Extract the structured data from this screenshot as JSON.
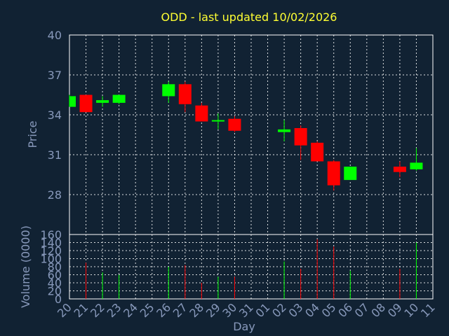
{
  "chart_data": {
    "type": "candlestick",
    "title": "ODD - last updated 10/02/2026",
    "price_axis": {
      "label": "Price",
      "ylim": [
        25,
        40
      ],
      "ticks": [
        40,
        37,
        34,
        31,
        28
      ]
    },
    "volume_axis": {
      "label": "Volume (0000)",
      "ylim": [
        0,
        160
      ],
      "ticks": [
        160,
        140,
        120,
        100,
        80,
        60,
        40,
        20,
        0
      ]
    },
    "x_axis": {
      "label": "Day",
      "labels": [
        "20",
        "21",
        "22",
        "23",
        "24",
        "25",
        "26",
        "27",
        "28",
        "29",
        "30",
        "31",
        "01",
        "02",
        "03",
        "04",
        "05",
        "06",
        "07",
        "08",
        "09",
        "10",
        "11"
      ]
    },
    "grid": true,
    "up_color": "#00ff00",
    "down_color": "#ff0000",
    "candles": [
      {
        "day": "20",
        "open": 34.6,
        "high": 35.5,
        "low": 34.6,
        "close": 35.4,
        "volume": 0
      },
      {
        "day": "21",
        "open": 35.5,
        "high": 35.5,
        "low": 34.2,
        "close": 34.2,
        "volume": 90
      },
      {
        "day": "22",
        "open": 34.9,
        "high": 35.4,
        "low": 34.6,
        "close": 35.1,
        "volume": 66
      },
      {
        "day": "23",
        "open": 34.9,
        "high": 35.5,
        "low": 34.8,
        "close": 35.5,
        "volume": 60
      },
      {
        "day": "26",
        "open": 35.4,
        "high": 36.5,
        "low": 34.9,
        "close": 36.3,
        "volume": 80
      },
      {
        "day": "27",
        "open": 36.3,
        "high": 36.5,
        "low": 34.2,
        "close": 34.8,
        "volume": 84
      },
      {
        "day": "28",
        "open": 34.7,
        "high": 34.9,
        "low": 33.5,
        "close": 33.5,
        "volume": 40
      },
      {
        "day": "29",
        "open": 33.5,
        "high": 34.1,
        "low": 32.9,
        "close": 33.6,
        "volume": 55
      },
      {
        "day": "30",
        "open": 33.7,
        "high": 33.9,
        "low": 32.7,
        "close": 32.8,
        "volume": 55
      },
      {
        "day": "02",
        "open": 32.7,
        "high": 33.6,
        "low": 32.0,
        "close": 32.9,
        "volume": 93
      },
      {
        "day": "03",
        "open": 33.0,
        "high": 33.2,
        "low": 30.6,
        "close": 31.7,
        "volume": 75
      },
      {
        "day": "04",
        "open": 31.9,
        "high": 32.0,
        "low": 30.5,
        "close": 30.5,
        "volume": 148
      },
      {
        "day": "05",
        "open": 30.5,
        "high": 30.6,
        "low": 28.3,
        "close": 28.7,
        "volume": 130
      },
      {
        "day": "06",
        "open": 29.1,
        "high": 30.1,
        "low": 29.1,
        "close": 30.1,
        "volume": 70
      },
      {
        "day": "09",
        "open": 30.1,
        "high": 30.5,
        "low": 29.3,
        "close": 29.7,
        "volume": 75
      },
      {
        "day": "10",
        "open": 29.9,
        "high": 31.5,
        "low": 29.8,
        "close": 30.4,
        "volume": 140
      }
    ]
  }
}
